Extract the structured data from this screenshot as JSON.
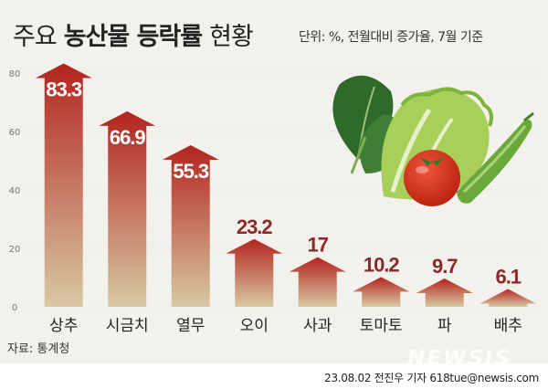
{
  "header": {
    "title_light": "주요",
    "title_bold": "농산물 등락률",
    "title_tail": "현황",
    "unit_note": "단위: %, 전월대비 증가율, 7월 기준"
  },
  "chart_data": {
    "type": "bar",
    "categories": [
      "상추",
      "시금치",
      "열무",
      "오이",
      "사과",
      "토마토",
      "파",
      "배추"
    ],
    "values": [
      83.3,
      66.9,
      55.3,
      23.2,
      17,
      10.2,
      9.7,
      6.1
    ],
    "value_labels": [
      "83.3",
      "66.9",
      "55.3",
      "23.2",
      "17",
      "10.2",
      "9.7",
      "6.1"
    ],
    "y_ticks": [
      "0",
      "20",
      "40",
      "60",
      "80"
    ],
    "ylim": [
      0,
      85
    ],
    "grid": true,
    "bar_top_color": "#b3241e",
    "bar_bottom_color": "#d8c9a4",
    "label_color_dark": "#8a2b2b"
  },
  "footer": {
    "source": "자료: 통계청",
    "byline": "23.08.02 전진우 기자 618tue@newsis.com",
    "watermark": "NEWSIS"
  },
  "illustration": {
    "icons": [
      "spinach-icon",
      "lettuce-icon",
      "tomato-icon",
      "cucumber-icon"
    ]
  }
}
